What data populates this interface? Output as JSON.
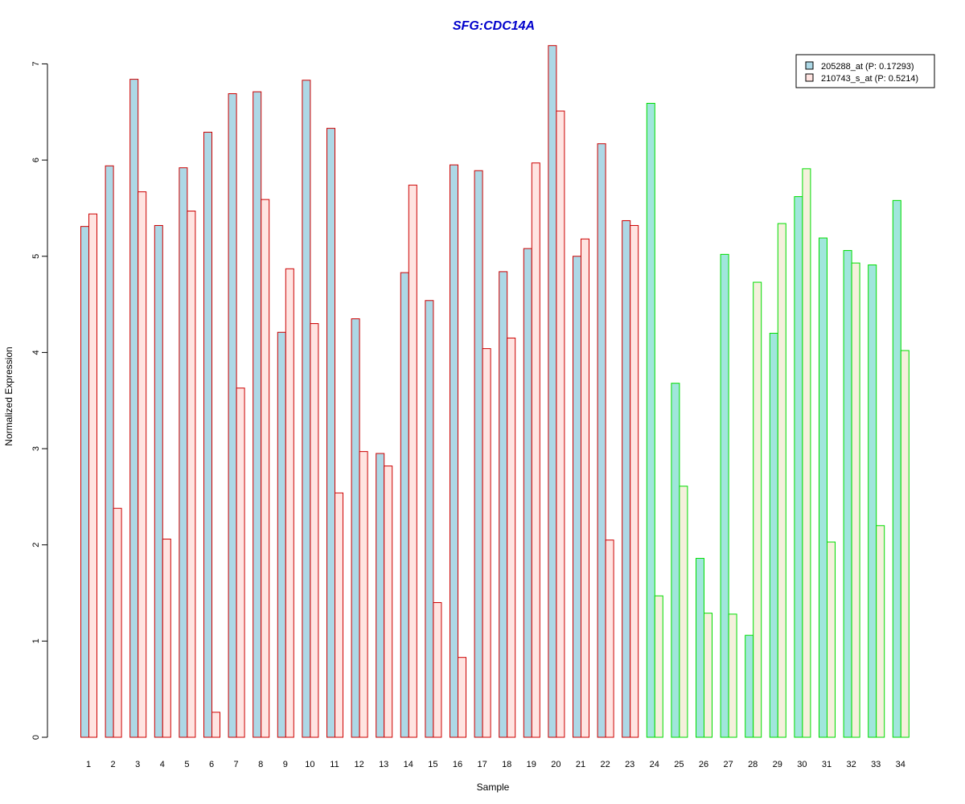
{
  "chart_data": {
    "type": "bar",
    "title": "SFG:CDC14A",
    "xlabel": "Sample",
    "ylabel": "Normalized Expression",
    "ylim": [
      0,
      7.2
    ],
    "yticks": [
      0,
      1,
      2,
      3,
      4,
      5,
      6,
      7
    ],
    "categories": [
      "1",
      "2",
      "3",
      "4",
      "5",
      "6",
      "7",
      "8",
      "9",
      "10",
      "11",
      "12",
      "13",
      "14",
      "15",
      "16",
      "17",
      "18",
      "19",
      "20",
      "21",
      "22",
      "23",
      "24",
      "25",
      "26",
      "27",
      "28",
      "29",
      "30",
      "31",
      "32",
      "33",
      "34"
    ],
    "series": [
      {
        "name": "205288_at (P: 0.17293)",
        "values": [
          5.31,
          5.94,
          6.84,
          5.32,
          5.92,
          6.29,
          6.69,
          6.71,
          4.21,
          6.83,
          6.33,
          4.35,
          2.95,
          4.83,
          4.54,
          5.95,
          5.89,
          4.84,
          5.08,
          7.19,
          5.0,
          6.17,
          5.37,
          6.59,
          3.68,
          1.86,
          5.02,
          1.06,
          4.2,
          5.62,
          5.19,
          5.06,
          4.91,
          5.58
        ]
      },
      {
        "name": "210743_s_at (P: 0.5214)",
        "values": [
          5.44,
          2.38,
          5.67,
          2.06,
          5.47,
          0.26,
          3.63,
          5.59,
          4.87,
          4.3,
          2.54,
          2.97,
          2.82,
          5.74,
          1.4,
          0.83,
          4.04,
          4.15,
          5.97,
          6.51,
          5.18,
          2.05,
          5.32,
          1.47,
          2.61,
          1.29,
          1.28,
          4.73,
          5.34,
          5.91,
          2.03,
          4.93,
          2.2,
          4.02
        ]
      }
    ],
    "groups": [
      {
        "samples": [
          1,
          23
        ],
        "border": "#cc0000",
        "fills": [
          "#add8e6",
          "#ffe4e1"
        ]
      },
      {
        "samples": [
          24,
          34
        ],
        "border": "#00dd00",
        "fills": [
          "#a0e6dc",
          "#f5f0dc"
        ]
      }
    ],
    "legend_position": "top-right",
    "grid": false
  }
}
